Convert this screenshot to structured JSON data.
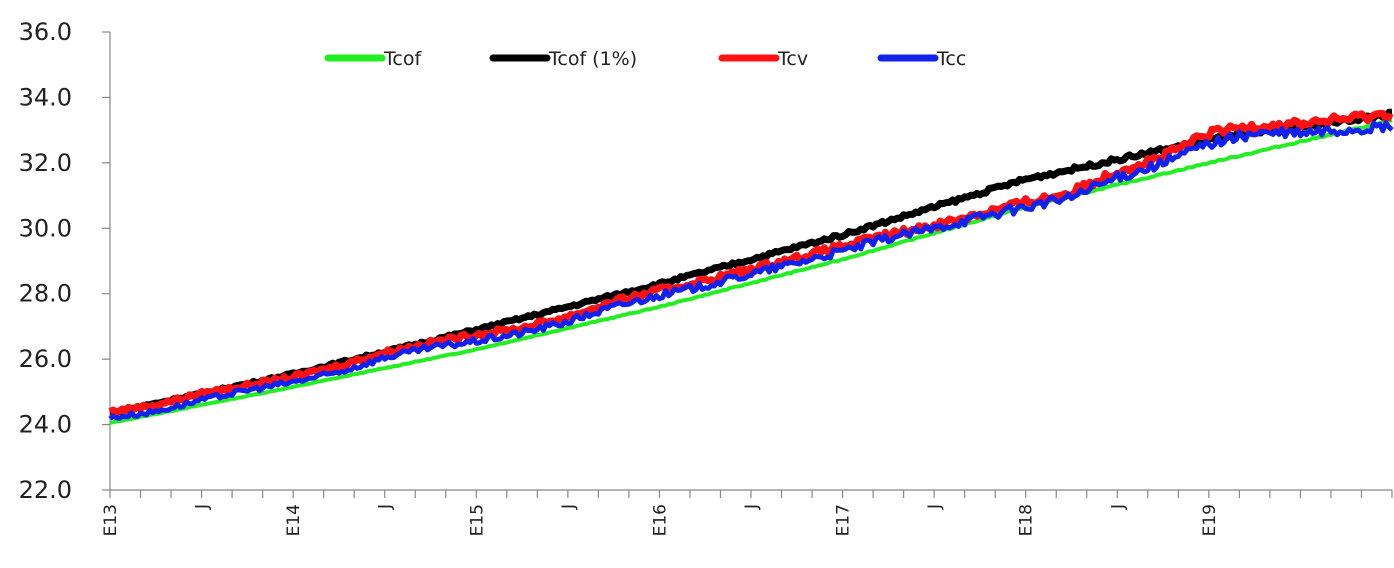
{
  "chart_data": {
    "type": "line",
    "title": "",
    "xlabel": "",
    "ylabel": "",
    "ylim": [
      22.0,
      36.0
    ],
    "yticks": [
      "22.0",
      "24.0",
      "26.0",
      "28.0",
      "30.0",
      "32.0",
      "34.0",
      "36.0"
    ],
    "x_range_months": 84,
    "xticks": [
      {
        "label": "E13",
        "month": 0
      },
      {
        "label": "J",
        "month": 6
      },
      {
        "label": "E14",
        "month": 12
      },
      {
        "label": "J",
        "month": 18
      },
      {
        "label": "E15",
        "month": 24
      },
      {
        "label": "J",
        "month": 30
      },
      {
        "label": "E16",
        "month": 36
      },
      {
        "label": "J",
        "month": 42
      },
      {
        "label": "E17",
        "month": 48
      },
      {
        "label": "J",
        "month": 54
      },
      {
        "label": "E18",
        "month": 60
      },
      {
        "label": "J",
        "month": 66
      },
      {
        "label": "E19",
        "month": 72
      }
    ],
    "legend_position": "top-center",
    "grid": false,
    "series": [
      {
        "name": "Tcof",
        "color": "#22ee22",
        "x": [
          0,
          12,
          24,
          36,
          48,
          60,
          72,
          84
        ],
        "y": [
          24.05,
          25.15,
          26.3,
          27.6,
          29.05,
          30.65,
          32.0,
          33.3
        ]
      },
      {
        "name": "Tcof (1%)",
        "color": "#000000",
        "x": [
          0,
          12,
          24,
          36,
          48,
          60,
          72,
          84
        ],
        "y": [
          24.35,
          25.55,
          26.9,
          28.3,
          29.8,
          31.5,
          32.7,
          33.5
        ]
      },
      {
        "name": "Tcv",
        "color": "#ff1111",
        "x": [
          0,
          3,
          6,
          9,
          12,
          15,
          18,
          21,
          24,
          27,
          30,
          33,
          36,
          39,
          42,
          45,
          48,
          51,
          54,
          57,
          60,
          63,
          66,
          69,
          72,
          75,
          78,
          81,
          84
        ],
        "y": [
          24.4,
          24.6,
          24.95,
          25.2,
          25.45,
          25.8,
          26.2,
          26.5,
          26.75,
          26.95,
          27.3,
          27.75,
          28.1,
          28.4,
          28.75,
          29.1,
          29.45,
          29.8,
          30.1,
          30.45,
          30.8,
          31.1,
          31.75,
          32.2,
          32.9,
          33.15,
          33.2,
          33.35,
          33.5
        ]
      },
      {
        "name": "Tcc",
        "color": "#1122ee",
        "x": [
          0,
          3,
          6,
          9,
          12,
          15,
          18,
          21,
          24,
          27,
          30,
          33,
          36,
          39,
          42,
          45,
          48,
          51,
          54,
          57,
          60,
          63,
          66,
          69,
          72,
          75,
          78,
          81,
          84
        ],
        "y": [
          24.2,
          24.4,
          24.75,
          25.05,
          25.3,
          25.6,
          26.05,
          26.35,
          26.55,
          26.8,
          27.15,
          27.6,
          27.95,
          28.25,
          28.6,
          28.95,
          29.3,
          29.7,
          30.0,
          30.35,
          30.65,
          30.95,
          31.55,
          32.0,
          32.6,
          32.9,
          32.9,
          33.0,
          33.1
        ]
      }
    ]
  }
}
